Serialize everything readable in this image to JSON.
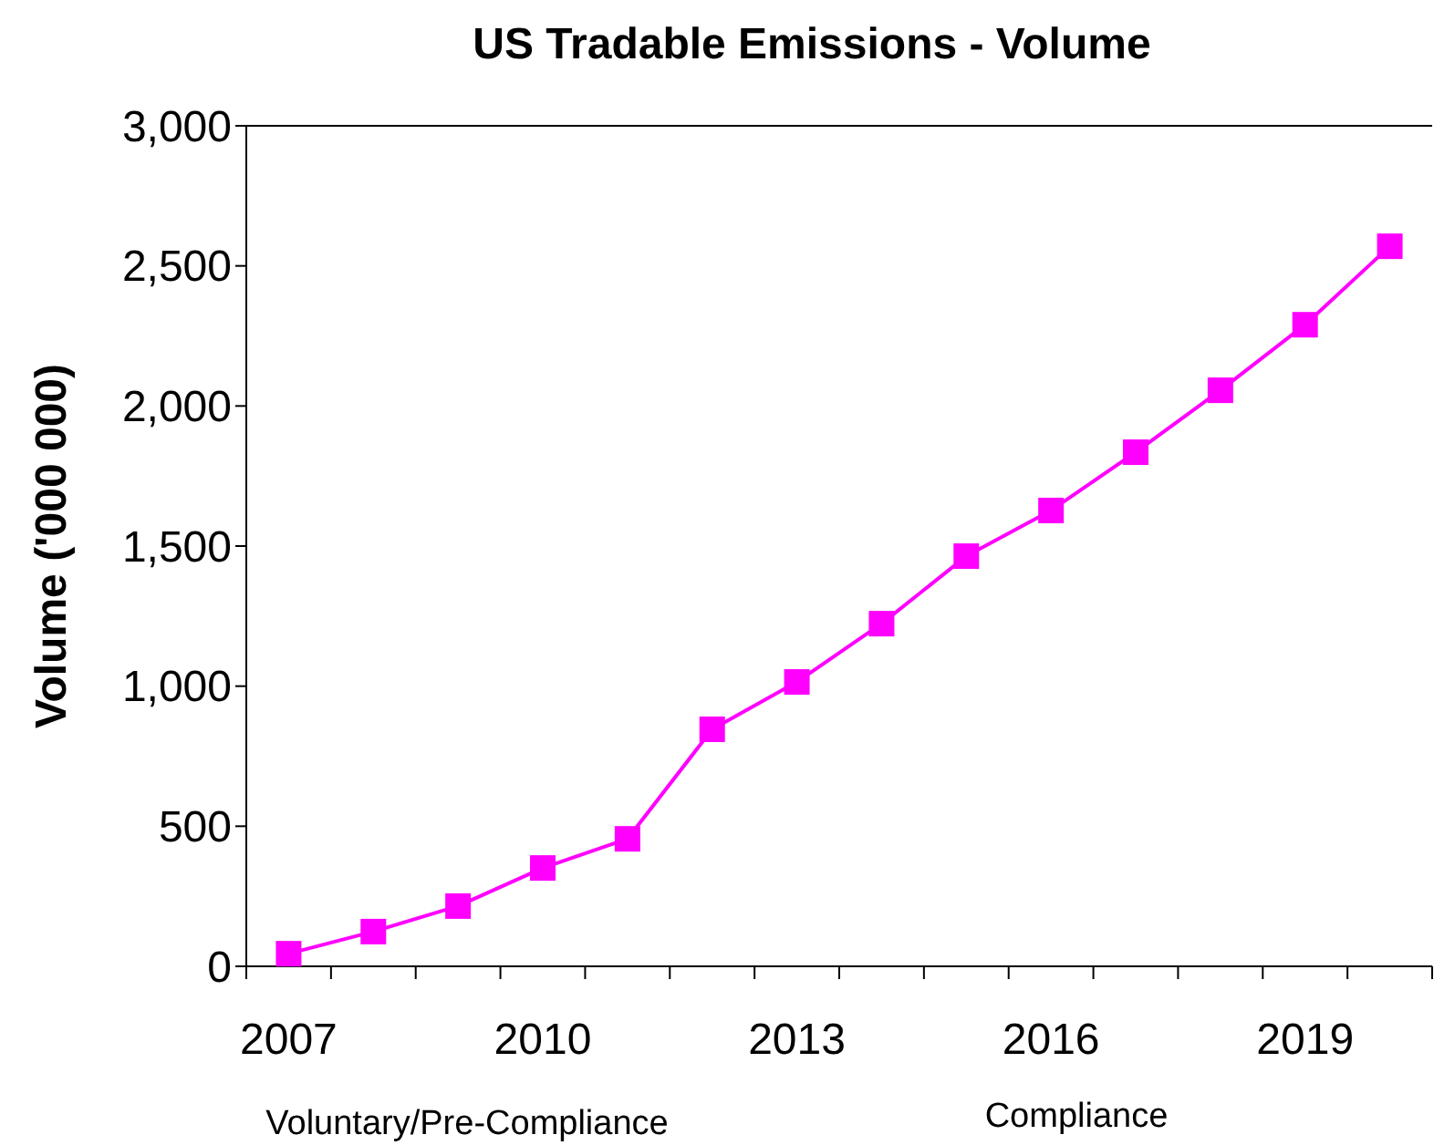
{
  "chart_data": {
    "type": "line",
    "title": "US Tradable Emissions - Volume",
    "ylabel": "Volume ('000 000)",
    "categories": [
      "2007",
      null,
      null,
      "2010",
      null,
      null,
      "2013",
      null,
      null,
      "2016",
      null,
      null,
      "2019",
      null
    ],
    "series": [
      {
        "color": "#ff00ff",
        "values": [
          45,
          124,
          215,
          351,
          455,
          846,
          1015,
          1223,
          1464,
          1627,
          1835,
          2056,
          2290,
          2570
        ]
      }
    ],
    "ylim": [
      0,
      3000
    ],
    "yticks": [
      {
        "value": 0,
        "label": "0"
      },
      {
        "value": 500,
        "label": "500"
      },
      {
        "value": 1000,
        "label": "1,000"
      },
      {
        "value": 1500,
        "label": "1,500"
      },
      {
        "value": 2000,
        "label": "2,000"
      },
      {
        "value": 2500,
        "label": "2,500"
      },
      {
        "value": 3000,
        "label": "3,000"
      }
    ],
    "marker": "square",
    "line_style": "solid",
    "grid": false,
    "annotations": [
      "Voluntary/Pre-Compliance",
      "Compliance"
    ]
  }
}
